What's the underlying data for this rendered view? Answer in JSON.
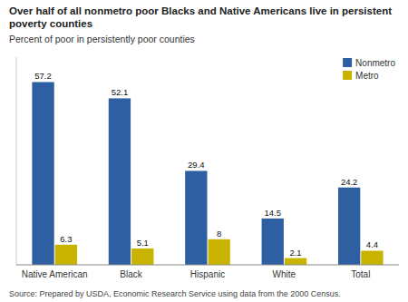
{
  "chart_data": {
    "type": "bar",
    "title": "Over half of all nonmetro poor Blacks and Native Americans live in persistent poverty counties",
    "subtitle": "Percent of poor in persistently poor counties",
    "source": "Source: Prepared by USDA, Economic Research Service using data from the 2000 Census.",
    "categories": [
      "Native American",
      "Black",
      "Hispanic",
      "White",
      "Total"
    ],
    "series": [
      {
        "name": "Nonmetro",
        "color": "#2E5FA3",
        "values": [
          57.2,
          52.1,
          29.4,
          14.5,
          24.2
        ]
      },
      {
        "name": "Metro",
        "color": "#C8B400",
        "values": [
          6.3,
          5.1,
          8.0,
          2.1,
          4.4
        ]
      }
    ],
    "ylim": [
      0,
      65
    ],
    "yticks": [],
    "grid": false,
    "legend": "upper right",
    "data_labels": true,
    "tick_labels": "x"
  }
}
